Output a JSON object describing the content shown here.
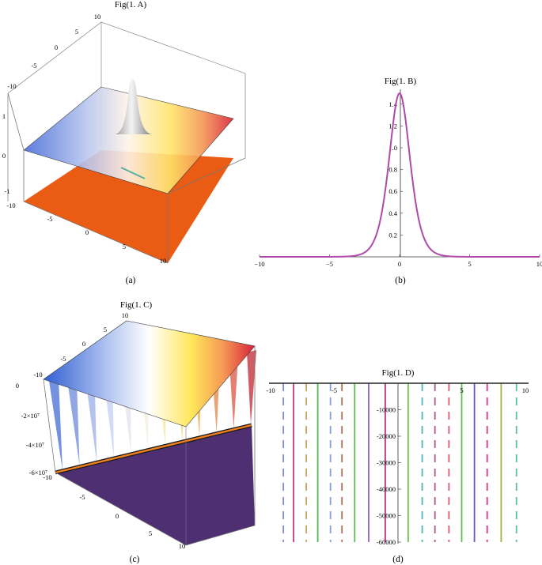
{
  "chart_data": [
    {
      "id": "A",
      "type": "surface3d",
      "title": "Fig(1. A)",
      "caption": "(a)",
      "x_ticks": [
        "-10",
        "-5",
        "0",
        "5",
        "10"
      ],
      "y_ticks": [
        "-10",
        "-5",
        "0",
        "5",
        "10"
      ],
      "z_ticks": [
        "1",
        "0",
        "-1"
      ],
      "xlim": [
        -10,
        10
      ],
      "ylim": [
        -10,
        10
      ],
      "zlim": [
        -1,
        1
      ]
    },
    {
      "id": "B",
      "type": "line",
      "title": "Fig(1. B)",
      "caption": "(b)",
      "function": "bell curve, peak 1.5 at x = 0",
      "peak": 1.5,
      "xlim": [
        -10,
        10
      ],
      "ylim": [
        0,
        1.5
      ],
      "x_ticks": [
        "-10",
        "-5",
        "0",
        "5",
        "10"
      ],
      "y_ticks": [
        "0.2",
        "0.4",
        "0.6",
        "0.8",
        "1.0",
        "1.2",
        "1.4"
      ],
      "color": "#b04aa8"
    },
    {
      "id": "C",
      "type": "surface3d",
      "title": "Fig(1. C)",
      "caption": "(c)",
      "x_ticks": [
        "-10",
        "-5",
        "0",
        "5",
        "10"
      ],
      "y_ticks": [
        "10",
        "5",
        "0",
        "-5",
        "-10"
      ],
      "z_ticks": [
        "0",
        "-2×10⁷",
        "-4×10⁷",
        "-6×10⁷"
      ],
      "xlim": [
        -10,
        10
      ],
      "ylim": [
        -10,
        10
      ],
      "zlim": [
        -60000000,
        0
      ]
    },
    {
      "id": "D",
      "type": "line",
      "title": "Fig(1. D)",
      "caption": "(d)",
      "xlim": [
        -10,
        10
      ],
      "ylim": [
        -60000,
        0
      ],
      "x_ticks": [
        "-10",
        "-5",
        "5",
        "10"
      ],
      "y_ticks": [
        "-10000",
        "-20000",
        "-30000",
        "-40000",
        "-50000",
        "-60000"
      ],
      "series": [
        {
          "x": -9.0,
          "style": "dashed",
          "color": "#7b8ed6"
        },
        {
          "x": -8.2,
          "style": "solid",
          "color": "#c43a85"
        },
        {
          "x": -7.2,
          "style": "dashed",
          "color": "#c6a35a"
        },
        {
          "x": -6.3,
          "style": "solid",
          "color": "#58b35a"
        },
        {
          "x": -5.3,
          "style": "dashed",
          "color": "#8e9ad8"
        },
        {
          "x": -4.4,
          "style": "dashed",
          "color": "#b96c54"
        },
        {
          "x": -3.4,
          "style": "solid",
          "color": "#5fbe4a"
        },
        {
          "x": -2.3,
          "style": "solid",
          "color": "#8a63c9"
        },
        {
          "x": -1.0,
          "style": "solid",
          "color": "#c02f80"
        },
        {
          "x": 0.8,
          "style": "solid",
          "color": "#70c24a"
        },
        {
          "x": 1.9,
          "style": "dashed",
          "color": "#4ab8b5"
        },
        {
          "x": 2.9,
          "style": "dashed",
          "color": "#b05a8f"
        },
        {
          "x": 4.0,
          "style": "dashed",
          "color": "#d45a72"
        },
        {
          "x": 5.0,
          "style": "solid",
          "color": "#5cc04f"
        },
        {
          "x": 6.0,
          "style": "solid",
          "color": "#6a55c8"
        },
        {
          "x": 7.0,
          "style": "dashed",
          "color": "#cc3d86"
        },
        {
          "x": 8.1,
          "style": "solid",
          "color": "#a3b04a"
        },
        {
          "x": 9.3,
          "style": "dashed",
          "color": "#55c0a0"
        }
      ]
    }
  ]
}
